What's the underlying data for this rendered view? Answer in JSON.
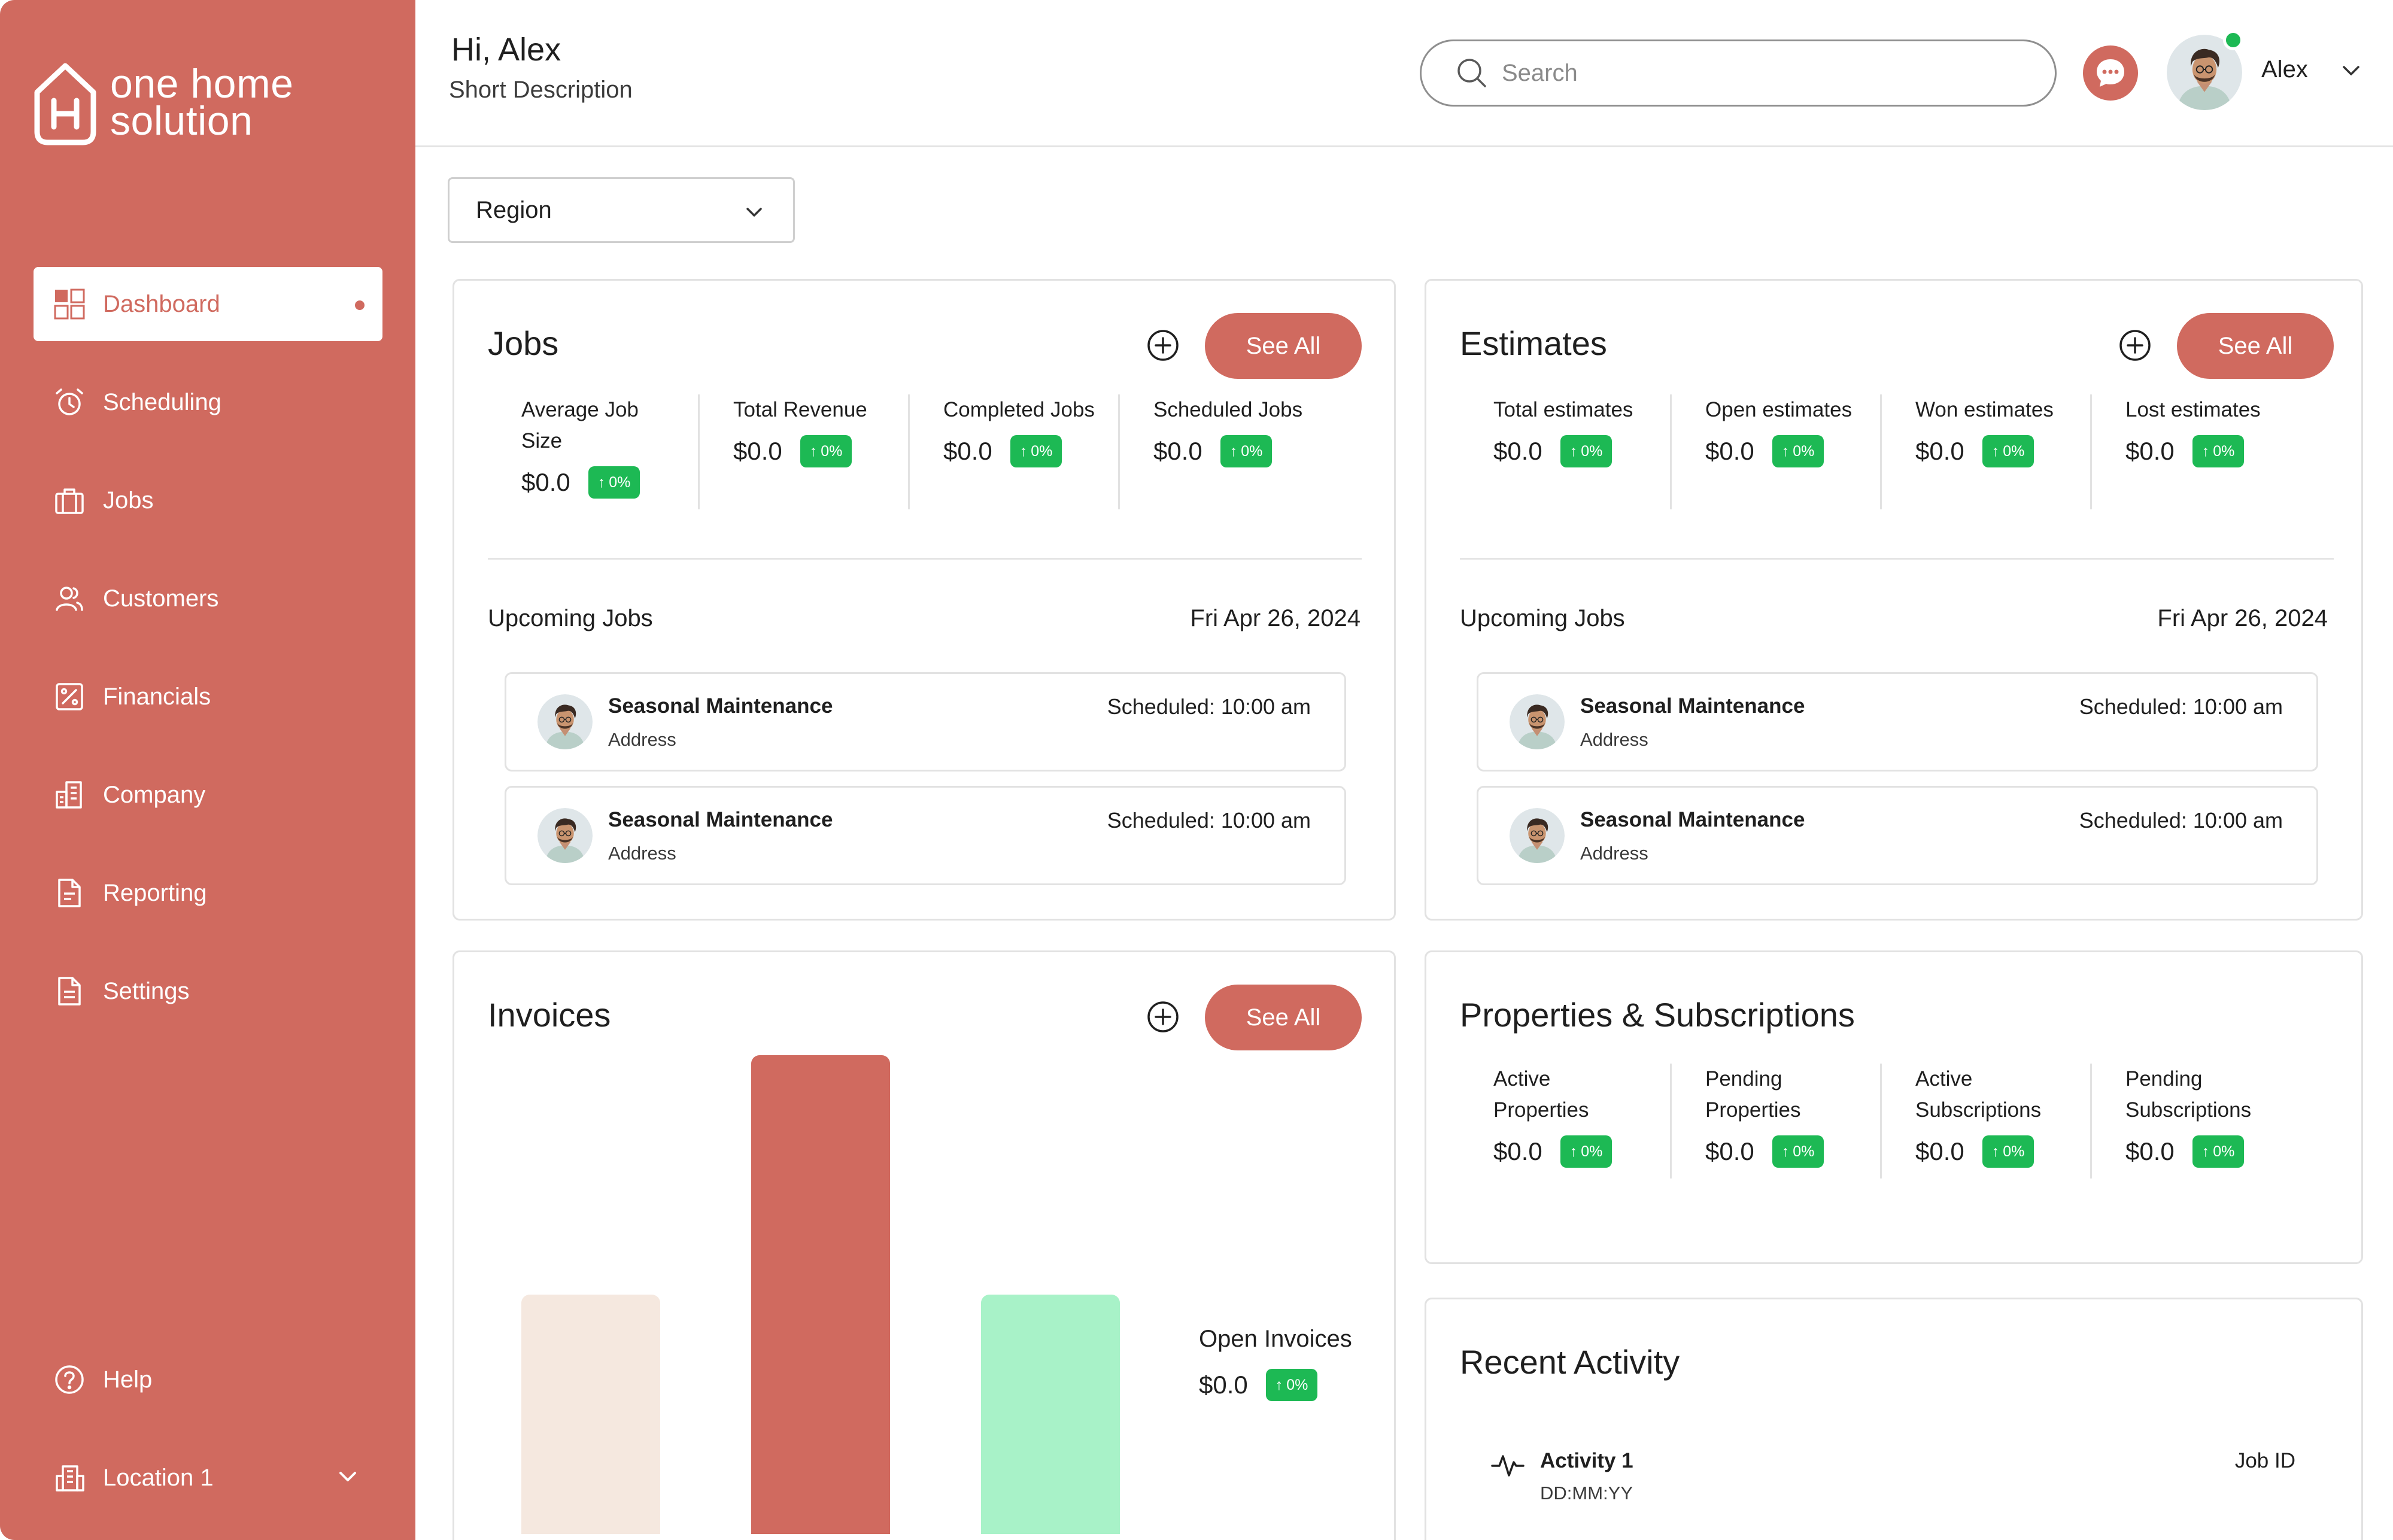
{
  "brand": {
    "name_line1": "one home",
    "name_line2": "solution"
  },
  "header": {
    "greeting": "Hi, Alex",
    "subtitle": "Short Description",
    "search_placeholder": "Search",
    "username": "Alex"
  },
  "sidebar": {
    "items": [
      {
        "label": "Dashboard",
        "icon": "dashboard-icon"
      },
      {
        "label": "Scheduling",
        "icon": "alarm-clock-icon"
      },
      {
        "label": "Jobs",
        "icon": "briefcase-icon"
      },
      {
        "label": "Customers",
        "icon": "users-icon"
      },
      {
        "label": "Financials",
        "icon": "percent-icon"
      },
      {
        "label": "Company",
        "icon": "building-icon"
      },
      {
        "label": "Reporting",
        "icon": "document-icon"
      },
      {
        "label": "Settings",
        "icon": "settings-document-icon"
      }
    ],
    "help": "Help",
    "location": "Location 1"
  },
  "filters": {
    "region": "Region"
  },
  "jobs": {
    "title": "Jobs",
    "see_all": "See All",
    "stats": [
      {
        "label": "Average Job Size",
        "value": "$0.0",
        "change": "0%"
      },
      {
        "label": "Total Revenue",
        "value": "$0.0",
        "change": "0%"
      },
      {
        "label": "Completed Jobs",
        "value": "$0.0",
        "change": "0%"
      },
      {
        "label": "Scheduled Jobs",
        "value": "$0.0",
        "change": "0%"
      }
    ],
    "upcoming_label": "Upcoming Jobs",
    "upcoming_date": "Fri Apr 26, 2024",
    "upcoming": [
      {
        "title": "Seasonal Maintenance",
        "address": "Address",
        "scheduled": "Scheduled: 10:00 am"
      },
      {
        "title": "Seasonal Maintenance",
        "address": "Address",
        "scheduled": "Scheduled: 10:00 am"
      }
    ]
  },
  "estimates": {
    "title": "Estimates",
    "see_all": "See All",
    "stats": [
      {
        "label": "Total estimates",
        "value": "$0.0",
        "change": "0%"
      },
      {
        "label": "Open estimates",
        "value": "$0.0",
        "change": "0%"
      },
      {
        "label": "Won estimates",
        "value": "$0.0",
        "change": "0%"
      },
      {
        "label": "Lost estimates",
        "value": "$0.0",
        "change": "0%"
      }
    ],
    "upcoming_label": "Upcoming Jobs",
    "upcoming_date": "Fri Apr 26, 2024",
    "upcoming": [
      {
        "title": "Seasonal Maintenance",
        "address": "Address",
        "scheduled": "Scheduled: 10:00 am"
      },
      {
        "title": "Seasonal Maintenance",
        "address": "Address",
        "scheduled": "Scheduled: 10:00 am"
      }
    ]
  },
  "invoices": {
    "title": "Invoices",
    "see_all": "See All",
    "open_label": "Open Invoices",
    "open_value": "$0.0",
    "open_change": "0%"
  },
  "chart_data": {
    "type": "bar",
    "title": "",
    "categories": [
      "",
      "",
      ""
    ],
    "relative_values": [
      0.5,
      1.0,
      0.5
    ],
    "colors": [
      "#F5E8DF",
      "#D06A5F",
      "#A8F2C8"
    ],
    "grid": false
  },
  "properties": {
    "title": "Properties & Subscriptions",
    "stats": [
      {
        "label": "Active Properties",
        "value": "$0.0",
        "change": "0%"
      },
      {
        "label": "Pending Properties",
        "value": "$0.0",
        "change": "0%"
      },
      {
        "label": "Active Subscriptions",
        "value": "$0.0",
        "change": "0%"
      },
      {
        "label": "Pending Subscriptions",
        "value": "$0.0",
        "change": "0%"
      }
    ]
  },
  "recent_activity": {
    "title": "Recent Activity",
    "items": [
      {
        "title": "Activity 1",
        "date": "DD:MM:YY",
        "ref": "Job ID"
      }
    ]
  },
  "colors": {
    "brand": "#D06A5F",
    "success": "#1DB954"
  }
}
